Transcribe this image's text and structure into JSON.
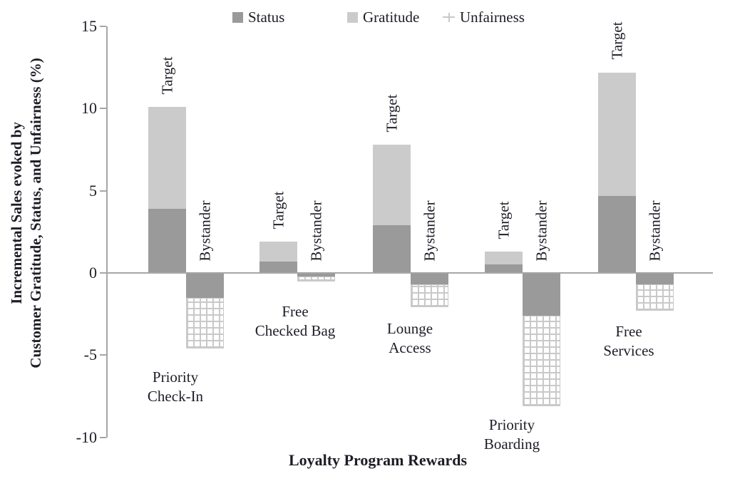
{
  "legend": [
    {
      "label": "Status",
      "swatch": "solid-dark-gray"
    },
    {
      "label": "Gratitude",
      "swatch": "solid-light-gray"
    },
    {
      "label": "Unfairness",
      "swatch": "crosshatch-plus"
    }
  ],
  "colors": {
    "status": "#9a9a9a",
    "gratitude": "#cbcbcb",
    "hatch": "#c9c9c9",
    "axis": "#a6a6a6",
    "text": "#1d1d27"
  },
  "chart_data": {
    "type": "bar",
    "stacked": true,
    "orientation": "vertical",
    "grid": false,
    "legend_position": "top",
    "xlabel": "Loyalty Program Rewards",
    "ylabel": "Incremental Sales evoked by Customer Gratitude, Status, and Unfairness (%)",
    "ylabel_lines": [
      "Incremental Sales evoked by",
      "Customer Gratitude, Status, and Unfairness (%)"
    ],
    "ylim": [
      -10,
      15
    ],
    "yticks": [
      15,
      10,
      5,
      0,
      -5,
      -10
    ],
    "categories": [
      "Priority Check-In",
      "Free Checked Bag",
      "Lounge Access",
      "Priority Boarding",
      "Free Services"
    ],
    "category_lines": [
      [
        "Priority",
        "Check-In"
      ],
      [
        "Free",
        "Checked Bag"
      ],
      [
        "Lounge",
        "Access"
      ],
      [
        "Priority",
        "Boarding"
      ],
      [
        "Free",
        "Services"
      ]
    ],
    "bar_labels": [
      "Target",
      "Bystander"
    ],
    "series": [
      {
        "name": "Status",
        "bar": "Target",
        "values": [
          3.9,
          0.7,
          2.9,
          0.5,
          4.7
        ]
      },
      {
        "name": "Gratitude",
        "bar": "Target",
        "values": [
          6.2,
          1.2,
          4.9,
          0.8,
          7.5
        ]
      },
      {
        "name": "Status",
        "bar": "Bystander",
        "values": [
          -1.5,
          -0.2,
          -0.7,
          -2.6,
          -0.7
        ]
      },
      {
        "name": "Unfairness",
        "bar": "Bystander",
        "values": [
          -3.1,
          -0.3,
          -1.4,
          -5.5,
          -1.6
        ]
      }
    ],
    "target_totals": [
      10.1,
      1.9,
      7.8,
      1.3,
      12.2
    ],
    "bystander_totals": [
      -4.6,
      -0.5,
      -2.1,
      -8.1,
      -2.3
    ]
  }
}
